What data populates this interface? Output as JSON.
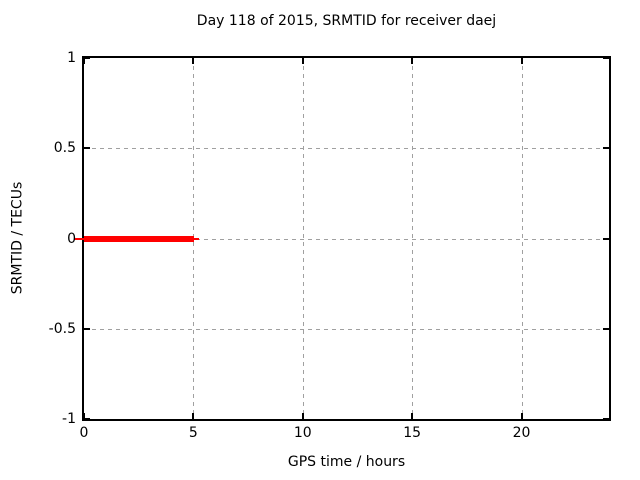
{
  "figure": {
    "background": "#ffffff"
  },
  "chart_data": {
    "type": "line",
    "title": "Day 118 of 2015, SRMTID for receiver daej",
    "xlabel": "GPS time / hours",
    "ylabel": "SRMTID / TECUs",
    "xlim": [
      0,
      24
    ],
    "ylim": [
      -1,
      1
    ],
    "grid": true,
    "grid_style": "dashed",
    "legend": "none",
    "xticks": [
      {
        "value": 0,
        "label": "0"
      },
      {
        "value": 5,
        "label": "5"
      },
      {
        "value": 10,
        "label": "10"
      },
      {
        "value": 15,
        "label": "15"
      },
      {
        "value": 20,
        "label": "20"
      }
    ],
    "yticks": [
      {
        "value": 1,
        "label": "1"
      },
      {
        "value": 0.5,
        "label": "0.5"
      },
      {
        "value": 0,
        "label": "0"
      },
      {
        "value": -0.5,
        "label": "-0.5"
      },
      {
        "value": -1,
        "label": "-1"
      }
    ],
    "series": [
      {
        "name": "SRMTID",
        "color": "#ff0000",
        "style": "thick-line",
        "points": [
          [
            0,
            0
          ],
          [
            5.05,
            0
          ]
        ]
      }
    ],
    "colors": {
      "grid": "#a0a0a0",
      "border": "#000000",
      "text": "#000000",
      "background": "#ffffff",
      "series": "#ff0000"
    }
  }
}
